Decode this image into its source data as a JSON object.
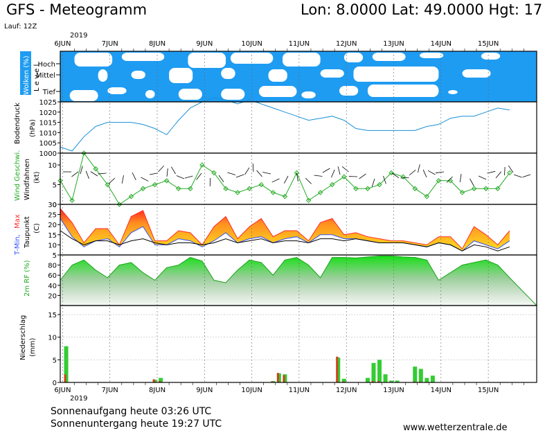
{
  "header": {
    "title": "GFS - Meteogramm",
    "location": "Lon: 8.0000 Lat: 49.0000 Hgt: 17",
    "run": "Lauf: 12Z",
    "year_top": "2019",
    "year_bottom": "2019"
  },
  "footer": {
    "sunrise": "Sonnenaufgang heute 03:26 UTC",
    "sunset": "Sonnenuntergang heute 19:27 UTC",
    "website": "www.wetterzentrale.de"
  },
  "colors": {
    "sky": "#1e9cf2",
    "pressure": "#1a8fd8",
    "wind": "#22aa22",
    "tmax": "#ff2a2a",
    "tmin": "#3050ff",
    "rh": "#22dd22",
    "precip_total": "#33cc33",
    "precip_conv": "#d04020"
  },
  "chart_data": {
    "type": "meteogram",
    "time_axis": {
      "start": "2019-06-06T00:00Z",
      "end": "2019-06-15T12:00Z",
      "labels": [
        "6JUN",
        "7JUN",
        "8JUN",
        "9JUN",
        "10JUN",
        "11JUN",
        "12JUN",
        "13JUN",
        "14JUN",
        "15JUN"
      ]
    },
    "panels": {
      "clouds": {
        "ylabel": "Wolken (%)",
        "side_label": "L e v e l",
        "levels": [
          "Hoch",
          "Mittel",
          "Tief"
        ]
      },
      "pressure": {
        "ylabel": "Bodendruck",
        "unit": "(hPa)",
        "ylim": [
          1000,
          1025
        ],
        "yticks": [
          1000,
          1005,
          1010,
          1015,
          1020,
          1025
        ],
        "times": [
          0,
          0.25,
          0.5,
          0.75,
          1,
          1.25,
          1.5,
          1.75,
          2,
          2.25,
          2.5,
          2.75,
          3,
          3.25,
          3.5,
          3.75,
          4,
          4.25,
          4.5,
          4.75,
          5,
          5.25,
          5.5,
          5.75,
          6,
          6.25,
          6.5,
          6.75,
          7,
          7.25,
          7.5,
          7.75,
          8,
          8.25,
          8.5,
          8.75,
          9,
          9.25,
          9.5
        ],
        "values": [
          1003,
          1001,
          1008,
          1013,
          1015,
          1015,
          1015,
          1014,
          1012,
          1009,
          1016,
          1022,
          1025,
          1027,
          1026,
          1024,
          1026,
          1024,
          1022,
          1020,
          1018,
          1016,
          1017,
          1018,
          1016,
          1012,
          1011,
          1011,
          1011,
          1011,
          1011,
          1013,
          1014,
          1017,
          1018,
          1018,
          1020,
          1022,
          1021
        ]
      },
      "wind": {
        "ylabel": "Wind Geschwi.",
        "ylabel2": "Windfahnen",
        "unit": "(kt)",
        "ylim": [
          0,
          13
        ],
        "yticks": [
          0,
          5,
          10
        ],
        "times": [
          0,
          0.25,
          0.5,
          0.75,
          1,
          1.25,
          1.5,
          1.75,
          2,
          2.25,
          2.5,
          2.75,
          3,
          3.25,
          3.5,
          3.75,
          4,
          4.25,
          4.5,
          4.75,
          5,
          5.25,
          5.5,
          5.75,
          6,
          6.25,
          6.5,
          6.75,
          7,
          7.25,
          7.5,
          7.75,
          8,
          8.25,
          8.5,
          8.75,
          9,
          9.25,
          9.5
        ],
        "values": [
          6,
          1,
          13,
          9,
          5,
          0,
          2,
          4,
          5,
          6,
          4,
          4,
          10,
          8,
          4,
          3,
          4,
          5,
          3,
          2,
          8,
          1,
          3,
          5,
          7,
          4,
          4,
          5,
          8,
          7,
          4,
          2,
          6,
          6,
          3,
          4,
          4,
          4,
          8
        ]
      },
      "temperature": {
        "ylabel_min": "T-Min,",
        "ylabel_max": "Max",
        "ylabel2": "Taupunkt",
        "unit": "(C)",
        "ylim": [
          5,
          30
        ],
        "yticks": [
          5,
          10,
          15,
          20,
          25,
          30
        ],
        "times": [
          0,
          0.25,
          0.5,
          0.75,
          1,
          1.25,
          1.5,
          1.75,
          2,
          2.25,
          2.5,
          2.75,
          3,
          3.25,
          3.5,
          3.75,
          4,
          4.25,
          4.5,
          4.75,
          5,
          5.25,
          5.5,
          5.75,
          6,
          6.25,
          6.5,
          6.75,
          7,
          7.25,
          7.5,
          7.75,
          8,
          8.25,
          8.5,
          8.75,
          9,
          9.25,
          9.5
        ],
        "tmax": [
          28,
          21,
          11,
          18,
          18,
          10,
          24,
          27,
          12,
          12,
          17,
          16,
          10,
          19,
          24,
          13,
          19,
          23,
          14,
          17,
          17,
          12,
          21,
          23,
          15,
          16,
          14,
          13,
          12,
          12,
          11,
          10,
          14,
          14,
          8,
          19,
          15,
          10,
          17
        ],
        "tmin": [
          23,
          14,
          9,
          12,
          13,
          9,
          16,
          19,
          10,
          10,
          13,
          12,
          9,
          12,
          16,
          11,
          13,
          14,
          11,
          13,
          14,
          11,
          15,
          15,
          13,
          13,
          12,
          11,
          11,
          11,
          10,
          9,
          11,
          10,
          7,
          12,
          10,
          8,
          12
        ],
        "dewpoint": [
          17,
          13,
          10,
          12,
          12,
          10,
          12,
          13,
          11,
          10,
          11,
          11,
          10,
          11,
          13,
          11,
          12,
          13,
          11,
          12,
          12,
          11,
          13,
          13,
          12,
          13,
          12,
          11,
          11,
          11,
          10,
          9,
          11,
          10,
          7,
          10,
          9,
          7,
          9
        ]
      },
      "humidity": {
        "ylabel": "2m RF (%)",
        "ylim": [
          0,
          100
        ],
        "yticks": [
          20,
          40,
          60,
          80
        ],
        "times": [
          0,
          0.25,
          0.5,
          0.75,
          1,
          1.25,
          1.5,
          1.75,
          2,
          2.25,
          2.5,
          2.75,
          3,
          3.25,
          3.5,
          3.75,
          4,
          4.25,
          4.5,
          4.75,
          5,
          5.25,
          5.5,
          5.75,
          6,
          6.25,
          6.5,
          6.75,
          7,
          7.25,
          7.5,
          7.75,
          8,
          8.25,
          8.5,
          8.75,
          9,
          9.25,
          9.5
        ],
        "values": [
          50,
          80,
          90,
          70,
          55,
          80,
          85,
          65,
          50,
          75,
          80,
          95,
          88,
          50,
          45,
          70,
          90,
          85,
          60,
          90,
          95,
          80,
          55,
          95,
          95,
          94,
          96,
          98,
          98,
          96,
          95,
          90,
          50,
          65,
          80,
          85,
          90,
          80,
          55
        ]
      },
      "precipitation": {
        "ylabel": "Niederschlag",
        "unit": "(mm)",
        "ylim": [
          0,
          17
        ],
        "yticks": [
          0,
          5,
          10,
          15
        ],
        "times": [
          0.125,
          2.0,
          2.125,
          4.5,
          4.625,
          4.75,
          5.875,
          6.0,
          6.5,
          6.625,
          6.75,
          6.875,
          7.0,
          7.125,
          7.5,
          7.625,
          7.75,
          7.875
        ],
        "total": [
          8.0,
          0.6,
          1.0,
          0.3,
          2.0,
          1.8,
          5.5,
          0.8,
          1.0,
          4.3,
          5.0,
          1.8,
          0.4,
          0.4,
          3.5,
          3.0,
          1.0,
          1.5
        ],
        "convective": [
          1.8,
          0.7,
          0.3,
          0.2,
          2.1,
          1.6,
          5.7,
          0.2,
          0.1,
          0.3,
          0.3,
          0.1,
          0.1,
          0.1,
          0.2,
          0.2,
          0.1,
          0.1
        ]
      }
    }
  }
}
